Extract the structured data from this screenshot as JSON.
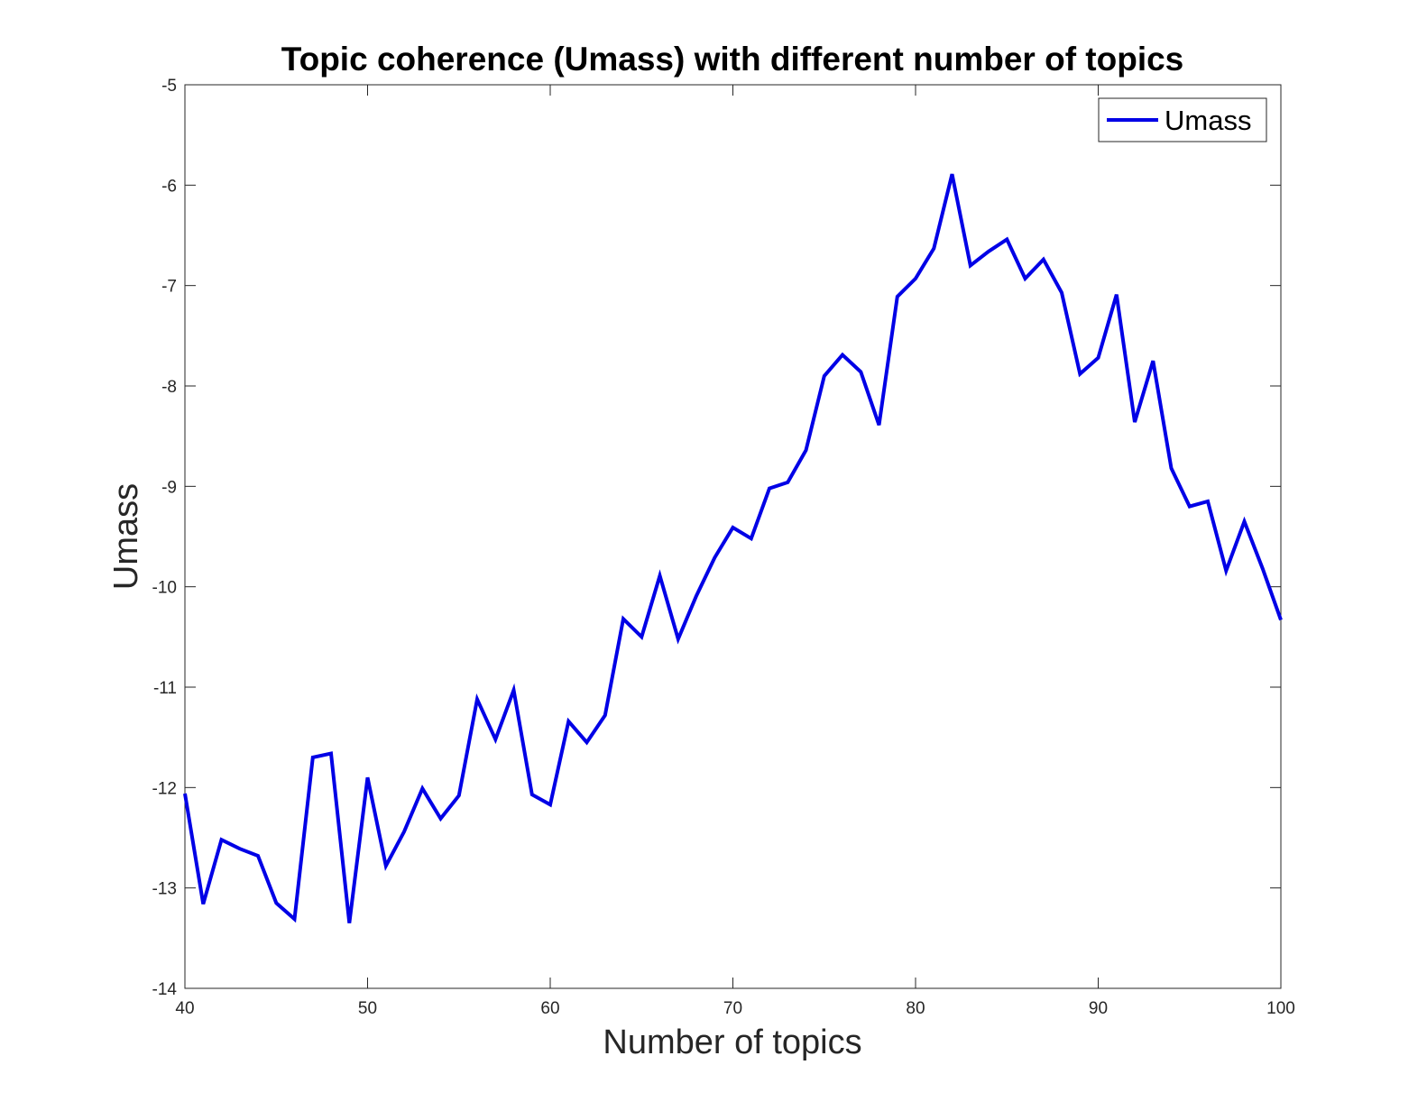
{
  "chart_data": {
    "type": "line",
    "title": "Topic coherence (Umass) with different number of topics",
    "xlabel": "Number of topics",
    "ylabel": "Umass",
    "xlim": [
      40,
      100
    ],
    "ylim": [
      -14,
      -5
    ],
    "xticks": [
      "40",
      "50",
      "60",
      "70",
      "80",
      "90",
      "100"
    ],
    "yticks": [
      "-5",
      "-6",
      "-7",
      "-8",
      "-9",
      "-10",
      "-11",
      "-12",
      "-13",
      "-14"
    ],
    "xtick_values": [
      40,
      50,
      60,
      70,
      80,
      90,
      100
    ],
    "ytick_values": [
      -5,
      -6,
      -7,
      -8,
      -9,
      -10,
      -11,
      -12,
      -13,
      -14
    ],
    "grid": false,
    "legend_position": "top-right",
    "series": [
      {
        "name": "Umass",
        "color": "#0000e6",
        "x": [
          40,
          41,
          42,
          43,
          44,
          45,
          46,
          47,
          48,
          49,
          50,
          51,
          52,
          53,
          54,
          55,
          56,
          57,
          58,
          59,
          60,
          61,
          62,
          63,
          64,
          65,
          66,
          67,
          68,
          69,
          70,
          71,
          72,
          73,
          74,
          75,
          76,
          77,
          78,
          79,
          80,
          81,
          82,
          83,
          84,
          85,
          86,
          87,
          88,
          89,
          90,
          91,
          92,
          93,
          94,
          95,
          96,
          97,
          98,
          99,
          100
        ],
        "y": [
          -12.06,
          -13.16,
          -12.52,
          -12.61,
          -12.68,
          -13.15,
          -13.31,
          -11.7,
          -11.66,
          -13.35,
          -11.9,
          -12.78,
          -12.44,
          -12.01,
          -12.31,
          -12.08,
          -11.12,
          -11.52,
          -11.03,
          -12.07,
          -12.17,
          -11.34,
          -11.55,
          -11.28,
          -10.32,
          -10.5,
          -9.89,
          -10.52,
          -10.09,
          -9.71,
          -9.41,
          -9.52,
          -9.02,
          -8.96,
          -8.64,
          -7.9,
          -7.69,
          -7.86,
          -8.39,
          -7.11,
          -6.93,
          -6.63,
          -5.89,
          -6.8,
          -6.66,
          -6.54,
          -6.93,
          -6.74,
          -7.07,
          -7.88,
          -7.72,
          -7.09,
          -8.36,
          -7.75,
          -8.82,
          -9.2,
          -9.15,
          -9.84,
          -9.35,
          -9.82,
          -10.33
        ]
      }
    ]
  }
}
